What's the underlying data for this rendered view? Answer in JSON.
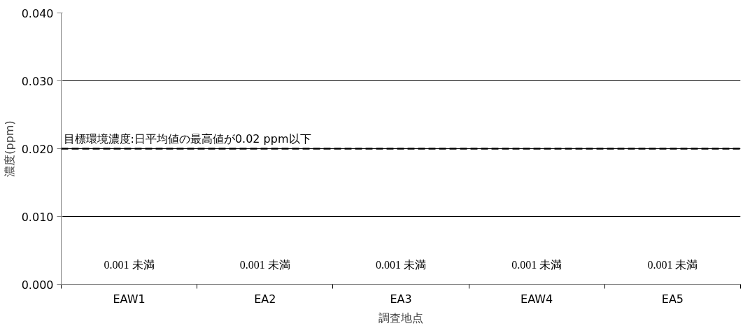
{
  "chart_data": {
    "type": "bar",
    "categories": [
      "EAW1",
      "EA2",
      "EA3",
      "EAW4",
      "EA5"
    ],
    "values": [
      null,
      null,
      null,
      null,
      null
    ],
    "value_labels": [
      "0.001 未満",
      "0.001 未満",
      "0.001 未満",
      "0.001 未満",
      "0.001 未満"
    ],
    "xlabel": "調査地点",
    "ylabel": "濃度(ppm)",
    "ylim": [
      0,
      0.04
    ],
    "yticks": [
      {
        "value": 0,
        "label": "0.000"
      },
      {
        "value": 0.01,
        "label": "0.010"
      },
      {
        "value": 0.02,
        "label": "0.020"
      },
      {
        "value": 0.03,
        "label": "0.030"
      },
      {
        "value": 0.04,
        "label": "0.040"
      }
    ],
    "grid": "y",
    "ref_lines": [
      {
        "axis": "y",
        "value": 0.02,
        "label": "目標環境濃度:日平均値の最高値が0.02 ppm以下",
        "color": "#000000",
        "line_style": "dashed"
      }
    ]
  }
}
